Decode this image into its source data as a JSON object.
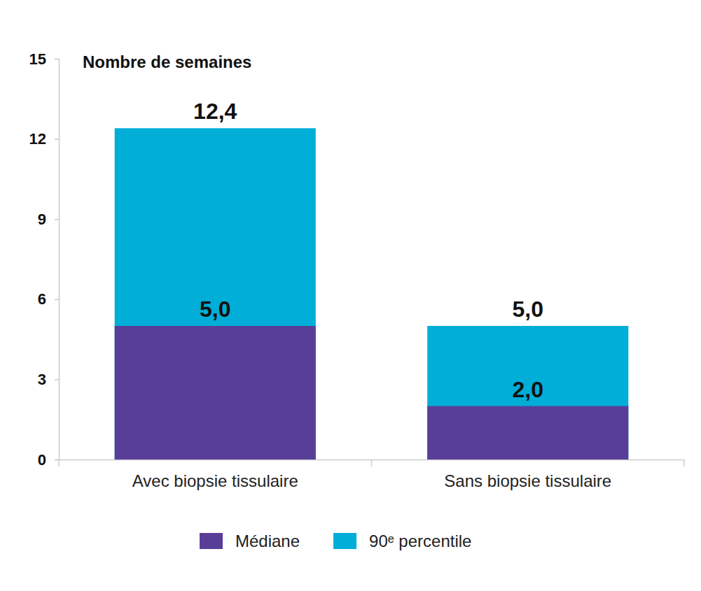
{
  "chart_data": {
    "type": "bar",
    "y_label": "Nombre de semaines",
    "categories": [
      "Avec biopsie tissulaire",
      "Sans biopsie tissulaire"
    ],
    "series": [
      {
        "name": "Médiane",
        "color": "#593e98",
        "values": [
          5.0,
          2.0
        ],
        "value_labels": [
          "5,0",
          "2,0"
        ]
      },
      {
        "name": "90ᵉ percentile",
        "color": "#00aed8",
        "values": [
          12.4,
          5.0
        ],
        "value_labels": [
          "12,4",
          "5,0"
        ]
      }
    ],
    "ylim": [
      0,
      15
    ],
    "yticks": [
      0,
      3,
      6,
      9,
      12,
      15
    ],
    "grid": false,
    "stacked": false,
    "data_labels": true,
    "legend": "bottom"
  }
}
